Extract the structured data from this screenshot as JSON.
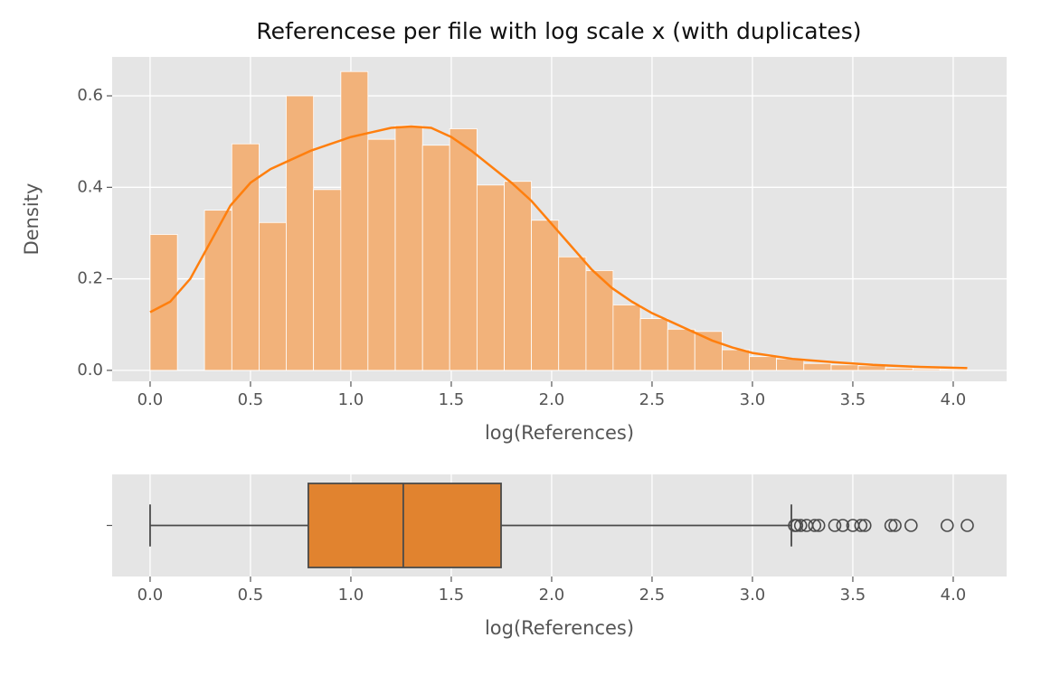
{
  "chart_data": [
    {
      "type": "histogram",
      "title": "Referencese per file with log scale x (with duplicates)",
      "xlabel": "log(References)",
      "ylabel": "Density",
      "bins": [
        0,
        0.136,
        0.271,
        0.407,
        0.543,
        0.678,
        0.814,
        0.95,
        1.085,
        1.221,
        1.357,
        1.492,
        1.628,
        1.764,
        1.899,
        2.035,
        2.171,
        2.306,
        2.442,
        2.578,
        2.713,
        2.849,
        2.985,
        3.12,
        3.256,
        3.392,
        3.527,
        3.663,
        3.799,
        3.934,
        4.07
      ],
      "values": [
        0.297,
        0,
        0.35,
        0.495,
        0.323,
        0.6,
        0.395,
        0.653,
        0.505,
        0.535,
        0.492,
        0.528,
        0.405,
        0.413,
        0.328,
        0.248,
        0.218,
        0.143,
        0.113,
        0.09,
        0.085,
        0.045,
        0.03,
        0.025,
        0.015,
        0.012,
        0.01,
        0.005,
        0.003,
        0.002
      ],
      "color": "#f2b27a",
      "kde": {
        "color": "#ff7f0e",
        "x": [
          0,
          0.1,
          0.2,
          0.3,
          0.4,
          0.5,
          0.6,
          0.7,
          0.8,
          0.9,
          1.0,
          1.1,
          1.2,
          1.3,
          1.4,
          1.5,
          1.6,
          1.7,
          1.8,
          1.9,
          2.0,
          2.1,
          2.2,
          2.3,
          2.4,
          2.5,
          2.6,
          2.7,
          2.8,
          2.9,
          3.0,
          3.2,
          3.4,
          3.6,
          3.8,
          4.07
        ],
        "values": [
          0.127,
          0.15,
          0.2,
          0.28,
          0.36,
          0.41,
          0.44,
          0.46,
          0.48,
          0.495,
          0.51,
          0.52,
          0.53,
          0.533,
          0.53,
          0.51,
          0.48,
          0.445,
          0.41,
          0.37,
          0.32,
          0.27,
          0.22,
          0.18,
          0.15,
          0.125,
          0.105,
          0.085,
          0.065,
          0.05,
          0.038,
          0.025,
          0.018,
          0.012,
          0.008,
          0.005
        ]
      },
      "xlim": [
        -0.189,
        4.266
      ],
      "ylim": [
        -0.024,
        0.685
      ],
      "xticks": [
        {
          "value": 0,
          "label": "0.0"
        },
        0.5,
        {
          "value": 1,
          "label": "1.0"
        },
        1.5,
        {
          "value": 2,
          "label": "2.0"
        },
        2.5,
        {
          "value": 3,
          "label": "3.0"
        },
        3.5,
        {
          "value": 4,
          "label": "4.0"
        }
      ],
      "yticks": [
        {
          "value": 0,
          "label": "0.0"
        },
        0.2,
        0.4,
        0.6
      ],
      "grid": true
    },
    {
      "type": "box",
      "xlabel": "log(References)",
      "color": "#e1832f",
      "box": {
        "whisker_low": 0,
        "q1": 0.788,
        "median": 1.261,
        "q3": 1.748,
        "whisker_high": 3.194,
        "outliers": [
          3.21,
          3.22,
          3.24,
          3.27,
          3.31,
          3.33,
          3.41,
          3.45,
          3.5,
          3.54,
          3.56,
          3.69,
          3.71,
          3.79,
          3.97,
          4.07
        ]
      },
      "xlim": [
        -0.189,
        4.266
      ],
      "xticks": [
        {
          "value": 0,
          "label": "0.0"
        },
        0.5,
        {
          "value": 1,
          "label": "1.0"
        },
        1.5,
        {
          "value": 2,
          "label": "2.0"
        },
        2.5,
        {
          "value": 3,
          "label": "3.0"
        },
        3.5,
        {
          "value": 4,
          "label": "4.0"
        }
      ],
      "grid": true
    }
  ]
}
